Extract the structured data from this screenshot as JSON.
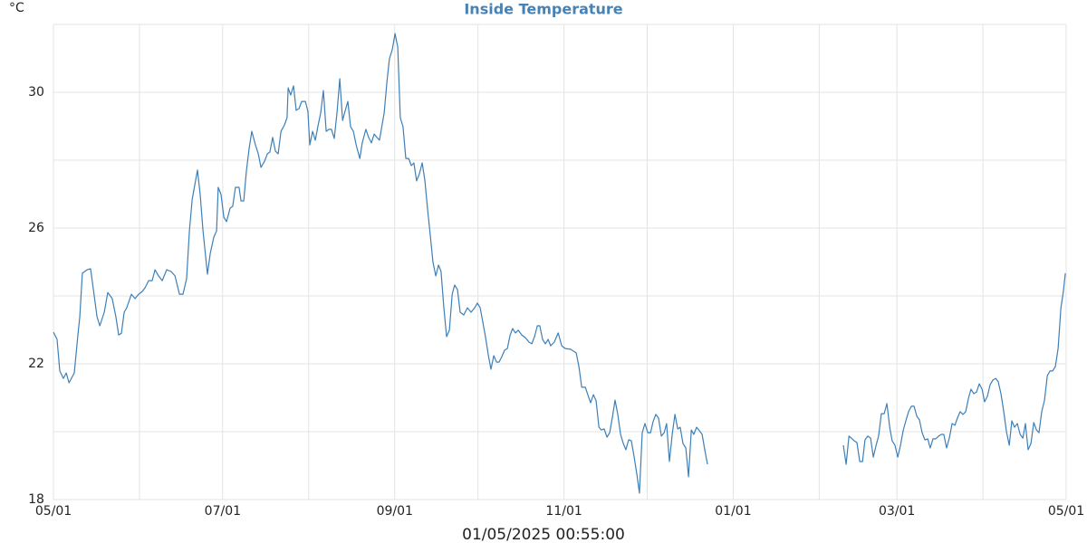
{
  "chart_data": {
    "type": "line",
    "title": "Inside Temperature",
    "y_label": "°C",
    "x_label": "01/05/2025 00:55:00",
    "xlim": [
      0,
      365
    ],
    "ylim": [
      18,
      32
    ],
    "xticks": [
      {
        "value": 0,
        "label": "05/01"
      },
      {
        "value": 61,
        "label": "07/01"
      },
      {
        "value": 123,
        "label": "09/01"
      },
      {
        "value": 184,
        "label": "11/01"
      },
      {
        "value": 245,
        "label": "01/01"
      },
      {
        "value": 304,
        "label": "03/01"
      },
      {
        "value": 365,
        "label": "05/01"
      }
    ],
    "xminor": [
      31,
      92,
      153,
      214,
      276,
      335
    ],
    "yticks": [
      18,
      22,
      26,
      30
    ],
    "yminor": [
      20,
      24,
      28,
      32
    ],
    "grid": true,
    "x": [
      0,
      1.3,
      2.3,
      3.6,
      4.6,
      5.6,
      7.5,
      8.8,
      9.5,
      10.4,
      12.1,
      13.4,
      14.4,
      15.7,
      16.7,
      18.3,
      19.6,
      21.2,
      22.5,
      23.5,
      24.5,
      25.5,
      26.4,
      28.1,
      29.4,
      30.7,
      32.0,
      33.0,
      34.3,
      35.6,
      36.6,
      37.9,
      39.2,
      40.8,
      42.4,
      43.8,
      45.4,
      46.7,
      48.0,
      49.0,
      50.0,
      50.9,
      51.9,
      52.9,
      53.9,
      55.5,
      56.5,
      57.8,
      58.8,
      59.4,
      60.4,
      61.4,
      62.4,
      63.7,
      64.6,
      65.6,
      66.9,
      67.6,
      68.6,
      69.5,
      70.5,
      71.5,
      72.8,
      73.8,
      74.8,
      76.1,
      77.1,
      78.0,
      79.0,
      80.0,
      81.0,
      82.0,
      83.3,
      84.2,
      84.6,
      85.5,
      86.5,
      87.5,
      88.5,
      89.5,
      90.8,
      91.7,
      92.4,
      93.4,
      94.4,
      95.3,
      96.3,
      97.3,
      98.3,
      99.3,
      100.2,
      101.2,
      102.2,
      103.2,
      104.2,
      105.1,
      106.1,
      107.1,
      108.1,
      109.1,
      110.4,
      111.3,
      112.6,
      113.6,
      114.6,
      115.6,
      116.6,
      117.5,
      119.2,
      120.2,
      121.1,
      122.1,
      123.1,
      124.1,
      125.0,
      126.0,
      127.0,
      128.0,
      129.0,
      129.9,
      130.9,
      131.9,
      132.9,
      133.9,
      134.8,
      135.8,
      136.8,
      137.8,
      138.8,
      139.7,
      140.7,
      141.7,
      142.7,
      143.7,
      144.6,
      145.6,
      146.6,
      147.9,
      149.2,
      150.5,
      151.8,
      152.8,
      153.8,
      154.8,
      155.7,
      156.7,
      157.7,
      158.7,
      159.7,
      160.6,
      161.6,
      162.6,
      163.6,
      164.6,
      165.5,
      166.5,
      167.5,
      168.8,
      170.1,
      171.4,
      172.4,
      173.4,
      174.4,
      175.3,
      176.3,
      177.3,
      178.3,
      179.2,
      180.5,
      181.9,
      183.2,
      184.5,
      186.4,
      188.4,
      189.4,
      190.4,
      191.7,
      192.6,
      193.6,
      194.6,
      195.6,
      196.6,
      197.5,
      198.5,
      199.5,
      200.5,
      201.5,
      202.4,
      203.4,
      204.4,
      205.4,
      206.3,
      207.3,
      208.3,
      209.3,
      210.3,
      211.2,
      212.2,
      213.2,
      214.2,
      215.2,
      216.1,
      217.1,
      218.1,
      219.1,
      220.1,
      221.0,
      222.0,
      223.0,
      224.0,
      225.0,
      225.9,
      226.9,
      227.9,
      228.9,
      229.9,
      230.8,
      231.8,
      232.8,
      233.8,
      234.8,
      235.7,
      260,
      284.7,
      285.7,
      286.7,
      287.6,
      288.6,
      289.6,
      290.6,
      291.6,
      292.5,
      293.5,
      294.5,
      295.5,
      296.5,
      297.4,
      298.4,
      299.4,
      300.4,
      301.4,
      302.3,
      303.3,
      304.3,
      305.3,
      306.3,
      307.2,
      308.2,
      309.2,
      310.2,
      311.2,
      312.1,
      313.1,
      314.1,
      315.1,
      316.0,
      317.0,
      318.0,
      319.0,
      320.0,
      320.9,
      321.9,
      322.9,
      323.9,
      324.9,
      325.8,
      326.8,
      327.8,
      328.8,
      329.8,
      330.7,
      331.7,
      332.7,
      333.7,
      334.7,
      335.6,
      336.6,
      337.6,
      338.6,
      339.6,
      340.5,
      341.5,
      342.5,
      343.5,
      344.5,
      345.4,
      346.4,
      347.4,
      348.4,
      349.4,
      350.3,
      351.3,
      352.3,
      353.3,
      354.3,
      355.2,
      356.2,
      357.2,
      358.2,
      359.2,
      360.1,
      361.1,
      362.1,
      363.1,
      364.0,
      364.7
    ],
    "series": [
      {
        "color": "#3d7fb8",
        "values": [
          22.93,
          22.72,
          21.79,
          21.57,
          21.73,
          21.44,
          21.73,
          22.85,
          23.39,
          24.67,
          24.77,
          24.8,
          24.19,
          23.39,
          23.12,
          23.52,
          24.1,
          23.92,
          23.39,
          22.85,
          22.9,
          23.52,
          23.65,
          24.05,
          23.92,
          24.05,
          24.13,
          24.24,
          24.45,
          24.45,
          24.77,
          24.59,
          24.45,
          24.77,
          24.72,
          24.59,
          24.05,
          24.05,
          24.51,
          25.92,
          26.85,
          27.25,
          27.71,
          26.99,
          25.92,
          24.64,
          25.25,
          25.73,
          25.92,
          27.2,
          26.99,
          26.32,
          26.19,
          26.59,
          26.64,
          27.2,
          27.2,
          26.8,
          26.8,
          27.65,
          28.32,
          28.85,
          28.45,
          28.19,
          27.79,
          27.97,
          28.19,
          28.24,
          28.67,
          28.27,
          28.19,
          28.85,
          29.04,
          29.25,
          30.13,
          29.92,
          30.19,
          29.47,
          29.52,
          29.73,
          29.73,
          29.44,
          28.45,
          28.85,
          28.59,
          28.99,
          29.39,
          30.05,
          28.85,
          28.91,
          28.91,
          28.64,
          29.39,
          30.4,
          29.17,
          29.44,
          29.73,
          28.99,
          28.85,
          28.45,
          28.05,
          28.51,
          28.91,
          28.67,
          28.51,
          28.77,
          28.67,
          28.59,
          29.39,
          30.32,
          30.99,
          31.25,
          31.73,
          31.33,
          29.25,
          28.99,
          28.05,
          28.05,
          27.84,
          27.92,
          27.39,
          27.6,
          27.92,
          27.39,
          26.59,
          25.79,
          24.99,
          24.59,
          24.91,
          24.72,
          23.65,
          22.8,
          22.99,
          24.05,
          24.32,
          24.19,
          23.52,
          23.44,
          23.65,
          23.52,
          23.65,
          23.79,
          23.65,
          23.2,
          22.8,
          22.27,
          21.84,
          22.24,
          22.05,
          22.05,
          22.21,
          22.4,
          22.45,
          22.85,
          23.04,
          22.91,
          22.99,
          22.85,
          22.77,
          22.64,
          22.59,
          22.8,
          23.12,
          23.12,
          22.72,
          22.59,
          22.72,
          22.53,
          22.64,
          22.91,
          22.53,
          22.45,
          22.43,
          22.32,
          21.92,
          21.31,
          21.31,
          21.09,
          20.85,
          21.09,
          20.91,
          20.13,
          20.05,
          20.08,
          19.84,
          19.97,
          20.45,
          20.93,
          20.51,
          19.92,
          19.65,
          19.47,
          19.76,
          19.73,
          19.25,
          18.72,
          18.19,
          19.97,
          20.24,
          19.97,
          19.97,
          20.29,
          20.51,
          20.4,
          19.87,
          19.97,
          20.24,
          19.12,
          19.92,
          20.51,
          20.08,
          20.13,
          19.65,
          19.52,
          18.67,
          20.05,
          19.92,
          20.13,
          20.03,
          19.92,
          19.44,
          19.04,
          null,
          19.6,
          19.04,
          19.87,
          19.81,
          19.73,
          19.68,
          19.12,
          19.12,
          19.76,
          19.87,
          19.81,
          19.25,
          19.6,
          19.87,
          20.53,
          20.53,
          20.83,
          20.13,
          19.73,
          19.6,
          19.25,
          19.6,
          20.05,
          20.32,
          20.59,
          20.75,
          20.75,
          20.45,
          20.35,
          19.97,
          19.76,
          19.79,
          19.52,
          19.79,
          19.79,
          19.87,
          19.92,
          19.92,
          19.52,
          19.81,
          20.24,
          20.19,
          20.4,
          20.59,
          20.51,
          20.59,
          20.99,
          21.25,
          21.12,
          21.17,
          21.41,
          21.25,
          20.88,
          21.04,
          21.39,
          21.52,
          21.57,
          21.47,
          21.12,
          20.59,
          20.0,
          19.6,
          20.32,
          20.13,
          20.24,
          19.92,
          19.81,
          20.24,
          19.47,
          19.65,
          20.27,
          20.05,
          19.97,
          20.59,
          20.93,
          21.65,
          21.79,
          21.79,
          21.92,
          22.45,
          23.65,
          24.13,
          24.67
        ]
      }
    ]
  }
}
